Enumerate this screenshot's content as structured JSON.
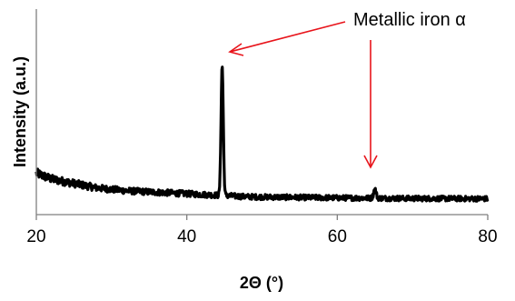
{
  "chart_data": {
    "type": "line",
    "xlabel": "2Θ (°)",
    "ylabel": "Intensity  (a.u.)",
    "xlim": [
      20,
      80
    ],
    "x_ticks": [
      "20",
      "40",
      "60",
      "80"
    ],
    "y_ticks_labeled": false,
    "grid": false,
    "legend": "none",
    "series_color": "#000000",
    "annotation": {
      "text": "Metallic iron α",
      "color": "#e8141b",
      "targets": [
        44.7,
        65.0
      ]
    },
    "baseline": [
      [
        20,
        0.22
      ],
      [
        21,
        0.2
      ],
      [
        22,
        0.18
      ],
      [
        23,
        0.17
      ],
      [
        24,
        0.16
      ],
      [
        25,
        0.15
      ],
      [
        26,
        0.14
      ],
      [
        27,
        0.13
      ],
      [
        28,
        0.12
      ],
      [
        29,
        0.115
      ],
      [
        30,
        0.11
      ],
      [
        32,
        0.1
      ],
      [
        34,
        0.095
      ],
      [
        36,
        0.09
      ],
      [
        38,
        0.085
      ],
      [
        40,
        0.08
      ],
      [
        42,
        0.075
      ],
      [
        44,
        0.07
      ],
      [
        46,
        0.065
      ],
      [
        48,
        0.06
      ],
      [
        50,
        0.058
      ],
      [
        55,
        0.055
      ],
      [
        60,
        0.052
      ],
      [
        65,
        0.05
      ],
      [
        70,
        0.048
      ],
      [
        75,
        0.047
      ],
      [
        80,
        0.046
      ]
    ],
    "peaks": [
      {
        "x": 44.7,
        "height": 0.88,
        "fwhm": 0.35
      },
      {
        "x": 65.0,
        "height": 0.06,
        "fwhm": 0.4
      },
      {
        "x": 82.3,
        "height": 0.0,
        "fwhm": 0.5
      }
    ],
    "noise_amplitude": 0.045
  }
}
